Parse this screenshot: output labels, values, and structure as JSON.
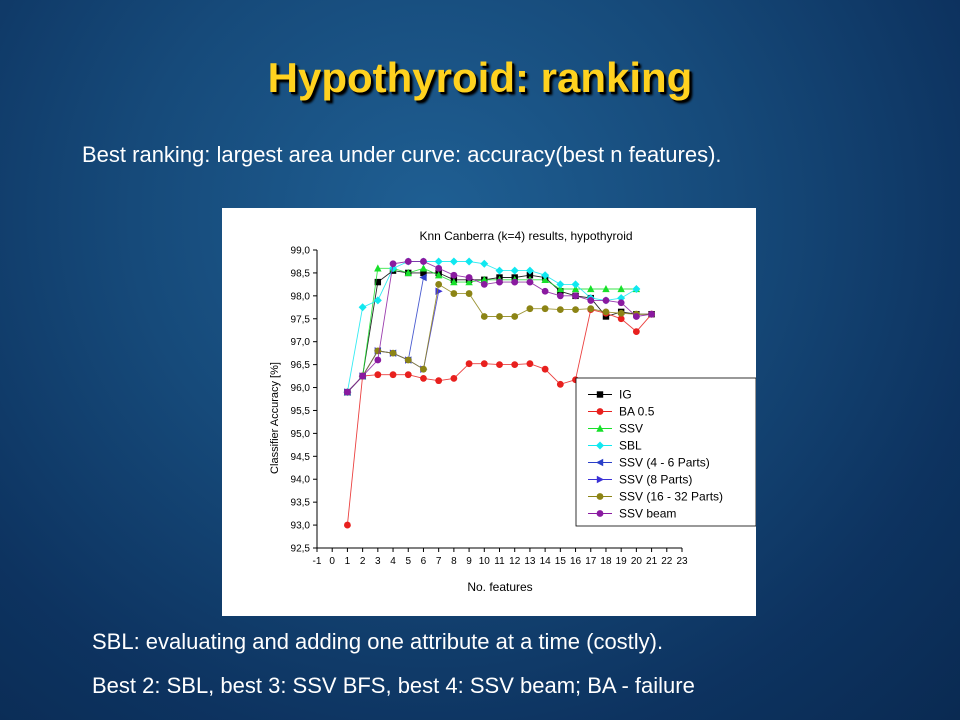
{
  "slide": {
    "title": "Hypothyroid: ranking",
    "subtitle": "Best ranking: largest area under curve: accuracy(best n features).",
    "notes": [
      "SBL: evaluating and adding one attribute at a time (costly).",
      "Best 2: SBL, best 3: SSV BFS, best 4: SSV beam; BA - failure"
    ]
  },
  "chart_data": {
    "type": "line",
    "title": "Knn Canberra (k=4) results, hypothyroid",
    "xlabel": "No. features",
    "ylabel": "Classifier Accuracy [%]",
    "xlim": [
      -1,
      23
    ],
    "ylim": [
      92.5,
      99.0
    ],
    "xticks": [
      -1,
      0,
      1,
      2,
      3,
      4,
      5,
      6,
      7,
      8,
      9,
      10,
      11,
      12,
      13,
      14,
      15,
      16,
      17,
      18,
      19,
      20,
      21,
      22,
      23
    ],
    "yticks": [
      "92,5",
      "93,0",
      "93,5",
      "94,0",
      "94,5",
      "95,0",
      "95,5",
      "96,0",
      "96,5",
      "97,0",
      "97,5",
      "98,0",
      "98,5",
      "99,0"
    ],
    "legend_position": "bottom-right",
    "series": [
      {
        "name": "IG",
        "color": "#000000",
        "marker": "square",
        "points": [
          [
            1,
            95.9
          ],
          [
            2,
            96.25
          ],
          [
            3,
            98.3
          ],
          [
            4,
            98.55
          ],
          [
            5,
            98.5
          ],
          [
            6,
            98.5
          ],
          [
            7,
            98.5
          ],
          [
            8,
            98.35
          ],
          [
            9,
            98.35
          ],
          [
            10,
            98.35
          ],
          [
            11,
            98.4
          ],
          [
            12,
            98.4
          ],
          [
            13,
            98.45
          ],
          [
            14,
            98.4
          ],
          [
            15,
            98.1
          ],
          [
            16,
            98.0
          ],
          [
            17,
            97.95
          ],
          [
            18,
            97.55
          ],
          [
            19,
            97.65
          ],
          [
            20,
            97.6
          ],
          [
            21,
            97.6
          ]
        ]
      },
      {
        "name": "BA 0.5",
        "color": "#e8201e",
        "marker": "circle",
        "points": [
          [
            1,
            93.0
          ],
          [
            2,
            96.25
          ],
          [
            3,
            96.28
          ],
          [
            4,
            96.28
          ],
          [
            5,
            96.28
          ],
          [
            6,
            96.2
          ],
          [
            7,
            96.15
          ],
          [
            8,
            96.2
          ],
          [
            9,
            96.52
          ],
          [
            10,
            96.52
          ],
          [
            11,
            96.5
          ],
          [
            12,
            96.5
          ],
          [
            13,
            96.52
          ],
          [
            14,
            96.4
          ],
          [
            15,
            96.07
          ],
          [
            16,
            96.17
          ],
          [
            17,
            97.7
          ],
          [
            18,
            97.62
          ],
          [
            19,
            97.5
          ],
          [
            20,
            97.22
          ],
          [
            21,
            97.6
          ]
        ]
      },
      {
        "name": "SSV",
        "color": "#17e02a",
        "marker": "triangle-up",
        "points": [
          [
            1,
            95.9
          ],
          [
            2,
            96.25
          ],
          [
            3,
            98.6
          ],
          [
            4,
            98.6
          ],
          [
            5,
            98.5
          ],
          [
            6,
            98.6
          ],
          [
            7,
            98.45
          ],
          [
            8,
            98.3
          ],
          [
            9,
            98.3
          ],
          [
            10,
            98.35
          ],
          [
            11,
            98.35
          ],
          [
            12,
            98.35
          ],
          [
            13,
            98.35
          ],
          [
            14,
            98.35
          ],
          [
            15,
            98.15
          ],
          [
            16,
            98.15
          ],
          [
            17,
            98.15
          ],
          [
            18,
            98.15
          ],
          [
            19,
            98.15
          ],
          [
            20,
            98.15
          ]
        ]
      },
      {
        "name": "SBL",
        "color": "#10e8f0",
        "marker": "diamond",
        "points": [
          [
            1,
            95.9
          ],
          [
            2,
            97.75
          ],
          [
            3,
            97.9
          ],
          [
            4,
            98.6
          ],
          [
            5,
            98.75
          ],
          [
            6,
            98.75
          ],
          [
            7,
            98.75
          ],
          [
            8,
            98.75
          ],
          [
            9,
            98.75
          ],
          [
            10,
            98.7
          ],
          [
            11,
            98.55
          ],
          [
            12,
            98.55
          ],
          [
            13,
            98.55
          ],
          [
            14,
            98.45
          ],
          [
            15,
            98.25
          ],
          [
            16,
            98.25
          ],
          [
            17,
            97.95
          ],
          [
            18,
            97.9
          ],
          [
            19,
            97.95
          ],
          [
            20,
            98.15
          ]
        ]
      },
      {
        "name": "SSV (4 - 6 Parts)",
        "color": "#2a3fc8",
        "marker": "triangle-left",
        "points": [
          [
            1,
            95.9
          ],
          [
            2,
            96.25
          ],
          [
            3,
            96.8
          ],
          [
            4,
            96.75
          ],
          [
            5,
            96.6
          ],
          [
            6,
            98.4
          ]
        ]
      },
      {
        "name": "SSV (8 Parts)",
        "color": "#3b32d6",
        "marker": "triangle-right",
        "points": [
          [
            1,
            95.9
          ],
          [
            2,
            96.25
          ],
          [
            3,
            96.8
          ],
          [
            4,
            96.75
          ],
          [
            5,
            96.6
          ],
          [
            6,
            96.4
          ],
          [
            7,
            98.1
          ]
        ]
      },
      {
        "name": "SSV (16 - 32 Parts)",
        "color": "#8c8415",
        "marker": "circle",
        "points": [
          [
            1,
            95.9
          ],
          [
            2,
            96.25
          ],
          [
            3,
            96.8
          ],
          [
            4,
            96.75
          ],
          [
            5,
            96.6
          ],
          [
            6,
            96.4
          ],
          [
            7,
            98.25
          ],
          [
            8,
            98.05
          ],
          [
            9,
            98.05
          ],
          [
            10,
            97.55
          ],
          [
            11,
            97.55
          ],
          [
            12,
            97.55
          ],
          [
            13,
            97.72
          ],
          [
            14,
            97.72
          ],
          [
            15,
            97.7
          ],
          [
            16,
            97.7
          ],
          [
            17,
            97.72
          ],
          [
            18,
            97.65
          ],
          [
            19,
            97.62
          ],
          [
            20,
            97.6
          ],
          [
            21,
            97.6
          ]
        ]
      },
      {
        "name": "SSV beam",
        "color": "#8a1aa0",
        "marker": "circle",
        "points": [
          [
            1,
            95.9
          ],
          [
            2,
            96.25
          ],
          [
            3,
            96.6
          ],
          [
            4,
            98.7
          ],
          [
            5,
            98.75
          ],
          [
            6,
            98.75
          ],
          [
            7,
            98.6
          ],
          [
            8,
            98.45
          ],
          [
            9,
            98.4
          ],
          [
            10,
            98.25
          ],
          [
            11,
            98.3
          ],
          [
            12,
            98.3
          ],
          [
            13,
            98.3
          ],
          [
            14,
            98.1
          ],
          [
            15,
            98.0
          ],
          [
            16,
            98.0
          ],
          [
            17,
            97.9
          ],
          [
            18,
            97.9
          ],
          [
            19,
            97.85
          ],
          [
            20,
            97.55
          ],
          [
            21,
            97.6
          ]
        ]
      }
    ]
  }
}
